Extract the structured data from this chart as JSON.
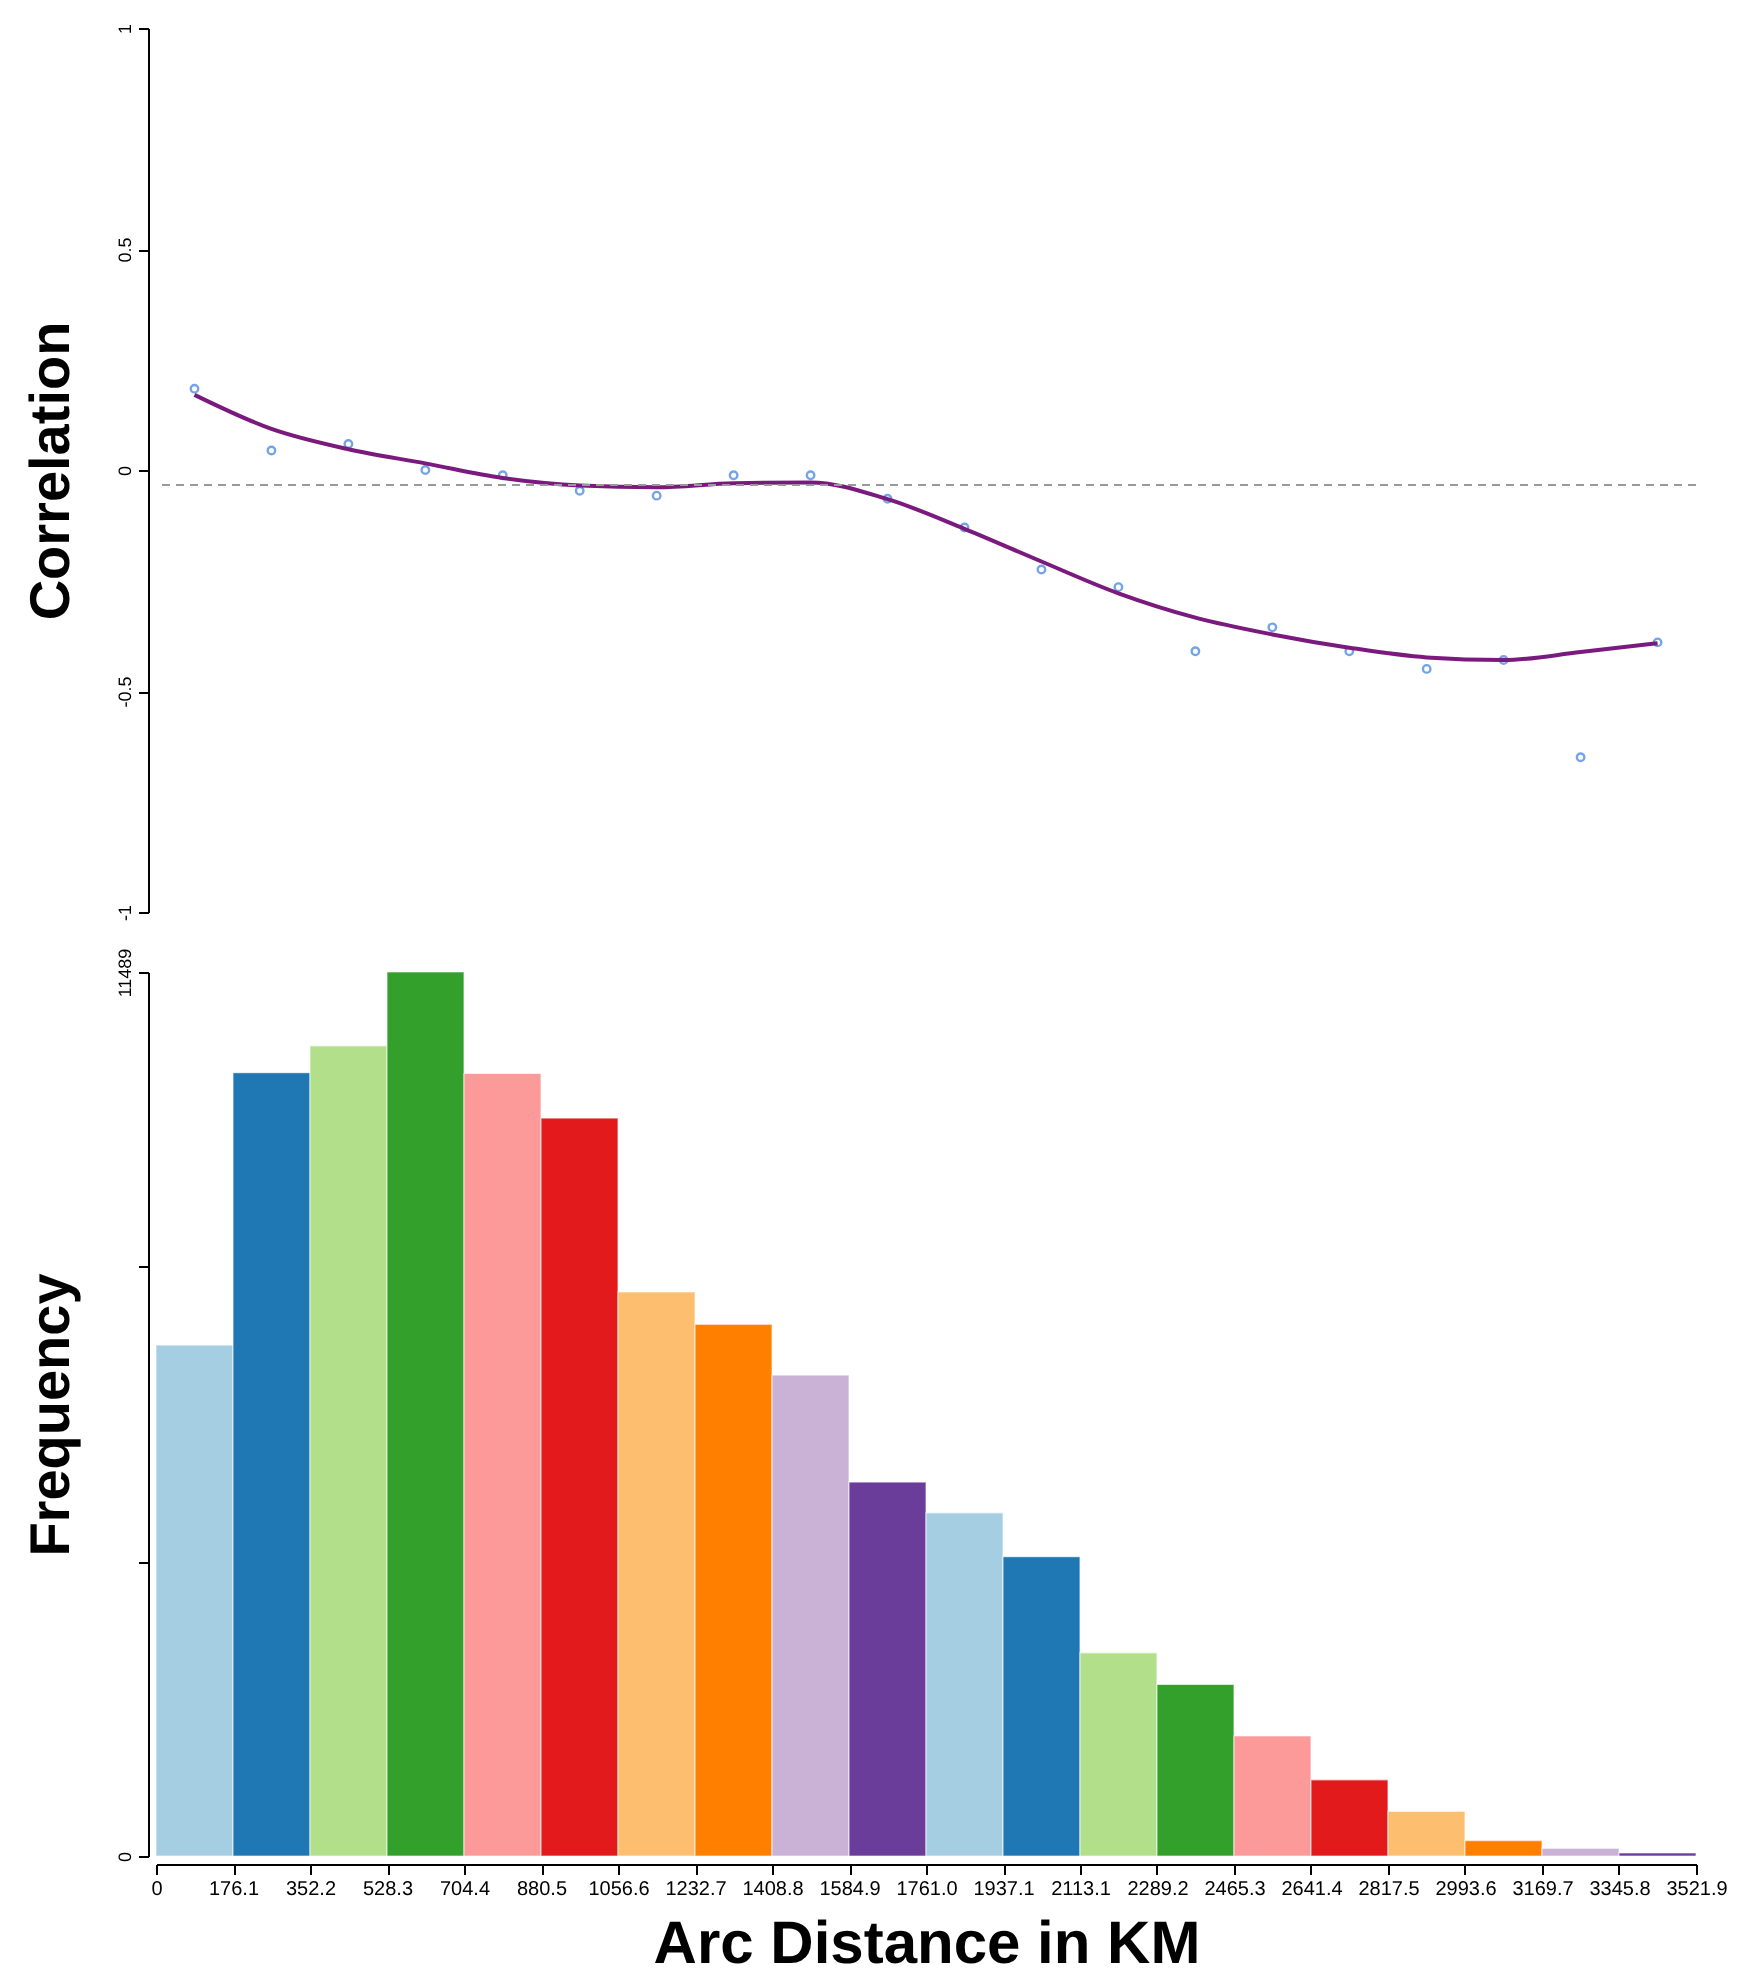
{
  "chart_data": [
    {
      "type": "scatter",
      "ylabel": "Correlation",
      "xlim": [
        0,
        3521.9
      ],
      "ylim": [
        -1,
        1
      ],
      "yticks": [
        -1,
        -0.5,
        0,
        0.5,
        1
      ],
      "tick_labels": "y",
      "grid": false,
      "marker": "circle",
      "ref_lines": [
        {
          "axis": "y",
          "value": -0.034,
          "color": "#999999",
          "line_style": "dashed"
        }
      ],
      "series": [
        {
          "type": "scatter",
          "color": "#3b7ddd",
          "x": [
            88,
            264,
            440,
            616,
            793,
            969,
            1145,
            1321,
            1497,
            1673,
            1849,
            2025,
            2201,
            2377,
            2553,
            2729,
            2906,
            3082,
            3258,
            3434
          ],
          "values": [
            0.184,
            0.044,
            0.059,
            0.0,
            -0.012,
            -0.047,
            -0.058,
            -0.012,
            -0.012,
            -0.065,
            -0.13,
            -0.225,
            -0.265,
            -0.41,
            -0.356,
            -0.41,
            -0.45,
            -0.43,
            -0.65,
            -0.39
          ]
        },
        {
          "type": "line",
          "color": "#7a1a7e",
          "marker": "none",
          "x": [
            88,
            264,
            440,
            616,
            793,
            969,
            1145,
            1321,
            1497,
            1673,
            1849,
            2025,
            2201,
            2377,
            2553,
            2729,
            2906,
            3082,
            3258,
            3434
          ],
          "values": [
            0.17,
            0.093,
            0.047,
            0.015,
            -0.018,
            -0.035,
            -0.039,
            -0.03,
            -0.028,
            -0.066,
            -0.133,
            -0.207,
            -0.279,
            -0.334,
            -0.372,
            -0.402,
            -0.424,
            -0.43,
            -0.412,
            -0.392
          ]
        }
      ]
    },
    {
      "type": "histogram",
      "xlabel": "Arc Distance in KM",
      "ylabel": "Frequency",
      "grid": false,
      "bins": [
        0,
        176.1,
        352.2,
        528.3,
        704.4,
        880.5,
        1056.6,
        1232.7,
        1408.8,
        1584.9,
        1761.0,
        1937.1,
        2113.1,
        2289.2,
        2465.3,
        2641.4,
        2817.5,
        2993.6,
        3169.7,
        3345.8,
        3521.9
      ],
      "values": [
        6640,
        10180,
        10530,
        11489,
        10170,
        9590,
        7330,
        6910,
        6250,
        4860,
        4460,
        3890,
        2640,
        2230,
        1560,
        990,
        580,
        200,
        100,
        40
      ],
      "colors": [
        "#a6cee3",
        "#1f78b4",
        "#b2df8a",
        "#33a02c",
        "#fb9a99",
        "#e31a1c",
        "#fdbf6f",
        "#ff7f00",
        "#cab2d6",
        "#6a3d9a",
        "#a6cee3",
        "#1f78b4",
        "#b2df8a",
        "#33a02c",
        "#fb9a99",
        "#e31a1c",
        "#fdbf6f",
        "#ff7f00",
        "#cab2d6",
        "#6a3d9a"
      ],
      "xlim": [
        0,
        3521.9
      ],
      "xticks": [
        0,
        176.1,
        352.2,
        528.3,
        704.4,
        880.5,
        1056.6,
        1232.7,
        1408.8,
        1584.9,
        {
          "value": 1761.0,
          "label": "1761.0"
        },
        1937.1,
        2113.1,
        2289.2,
        2465.3,
        2641.4,
        2817.5,
        2993.6,
        3169.7,
        3345.8,
        3521.9
      ],
      "ylim": [
        0,
        11489
      ],
      "yticks": [
        0,
        {
          "value": 3829.67,
          "label": null
        },
        {
          "value": 7659.33,
          "label": null
        },
        11489
      ]
    }
  ]
}
